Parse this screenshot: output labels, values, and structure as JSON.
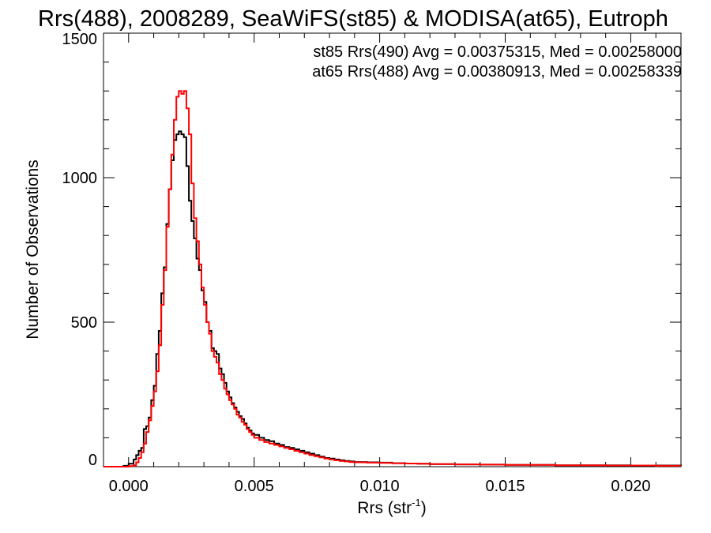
{
  "chart_data": {
    "type": "line",
    "title": "Rrs(488), 2008289, SeaWiFS(st85) & MODISA(at65), Eutroph",
    "xlabel": "Rrs (str",
    "xlabel_sup": "-1",
    "xlabel_end": ")",
    "ylabel": "Number of Observations",
    "xlim": [
      -0.001,
      0.022
    ],
    "ylim": [
      0,
      1500
    ],
    "xticks": [
      0.0,
      0.005,
      0.01,
      0.015,
      0.02
    ],
    "xtick_labels": [
      "0.000",
      "0.005",
      "0.010",
      "0.015",
      "0.020"
    ],
    "yticks": [
      0,
      500,
      1000,
      1500
    ],
    "ytick_labels": [
      "0",
      "500",
      "1000",
      "1500"
    ],
    "step": "histogram",
    "legend_position": "top-right",
    "series": [
      {
        "name": "st85 Rrs(490) Avg = 0.00375315, Med = 0.00258000",
        "color": "#000000",
        "x": [
          -0.001,
          -0.0005,
          -0.0002,
          0.0,
          0.0002,
          0.0003,
          0.0004,
          0.0005,
          0.0006,
          0.0007,
          0.0008,
          0.0009,
          0.001,
          0.0011,
          0.0012,
          0.0013,
          0.0014,
          0.0015,
          0.0016,
          0.0017,
          0.0018,
          0.0019,
          0.002,
          0.0021,
          0.0022,
          0.0023,
          0.0024,
          0.0025,
          0.0026,
          0.0027,
          0.0028,
          0.0029,
          0.003,
          0.0031,
          0.0032,
          0.0033,
          0.0034,
          0.0035,
          0.0036,
          0.0037,
          0.0038,
          0.0039,
          0.004,
          0.0041,
          0.0042,
          0.0043,
          0.0044,
          0.0045,
          0.0046,
          0.0047,
          0.0048,
          0.0049,
          0.005,
          0.0052,
          0.0054,
          0.0056,
          0.0058,
          0.006,
          0.0062,
          0.0064,
          0.0066,
          0.0068,
          0.007,
          0.0072,
          0.0074,
          0.0076,
          0.0078,
          0.008,
          0.0082,
          0.0084,
          0.0086,
          0.0088,
          0.009,
          0.0095,
          0.01,
          0.0105,
          0.011,
          0.0115,
          0.012,
          0.013,
          0.014,
          0.015,
          0.016,
          0.017,
          0.018,
          0.019,
          0.02,
          0.021,
          0.022
        ],
        "y": [
          0,
          0,
          3,
          10,
          25,
          40,
          55,
          65,
          130,
          140,
          170,
          230,
          280,
          390,
          470,
          600,
          690,
          840,
          960,
          1060,
          1130,
          1150,
          1160,
          1150,
          1140,
          1040,
          920,
          850,
          790,
          720,
          680,
          610,
          570,
          500,
          470,
          410,
          400,
          390,
          340,
          320,
          290,
          260,
          240,
          220,
          205,
          190,
          175,
          165,
          150,
          135,
          125,
          115,
          110,
          100,
          92,
          88,
          80,
          75,
          68,
          65,
          60,
          55,
          50,
          45,
          40,
          35,
          30,
          28,
          25,
          22,
          20,
          18,
          16,
          15,
          14,
          12,
          11,
          10,
          9,
          8,
          7,
          6,
          6,
          5,
          5,
          5,
          4,
          4,
          3
        ]
      },
      {
        "name": "at65 Rrs(488) Avg = 0.00380913, Med = 0.00258339",
        "color": "#ff0000",
        "x": [
          -0.001,
          -0.0005,
          -0.0002,
          0.0,
          0.0002,
          0.0003,
          0.0004,
          0.0005,
          0.0006,
          0.0007,
          0.0008,
          0.0009,
          0.001,
          0.0011,
          0.0012,
          0.0013,
          0.0014,
          0.0015,
          0.0016,
          0.0017,
          0.0018,
          0.0019,
          0.002,
          0.0021,
          0.0022,
          0.0023,
          0.0024,
          0.0025,
          0.0026,
          0.0027,
          0.0028,
          0.0029,
          0.003,
          0.0031,
          0.0032,
          0.0033,
          0.0034,
          0.0035,
          0.0036,
          0.0037,
          0.0038,
          0.0039,
          0.004,
          0.0041,
          0.0042,
          0.0043,
          0.0044,
          0.0045,
          0.0046,
          0.0047,
          0.0048,
          0.0049,
          0.005,
          0.0052,
          0.0054,
          0.0056,
          0.0058,
          0.006,
          0.0062,
          0.0064,
          0.0066,
          0.0068,
          0.007,
          0.0072,
          0.0074,
          0.0076,
          0.0078,
          0.008,
          0.0082,
          0.0084,
          0.0086,
          0.0088,
          0.009,
          0.0095,
          0.01,
          0.0105,
          0.011,
          0.0115,
          0.012,
          0.013,
          0.014,
          0.015,
          0.016,
          0.017,
          0.018,
          0.019,
          0.02,
          0.021,
          0.022
        ],
        "y": [
          0,
          0,
          0,
          2,
          5,
          15,
          30,
          50,
          80,
          120,
          160,
          210,
          260,
          330,
          420,
          560,
          680,
          830,
          960,
          1080,
          1200,
          1280,
          1300,
          1290,
          1300,
          1240,
          1150,
          980,
          860,
          780,
          700,
          620,
          560,
          500,
          460,
          400,
          380,
          360,
          320,
          300,
          270,
          250,
          230,
          215,
          200,
          180,
          170,
          155,
          145,
          130,
          120,
          110,
          100,
          92,
          85,
          80,
          75,
          70,
          65,
          60,
          55,
          50,
          45,
          40,
          36,
          32,
          28,
          25,
          22,
          20,
          18,
          16,
          15,
          14,
          13,
          12,
          11,
          10,
          9,
          8,
          7,
          6,
          6,
          5,
          5,
          4,
          4,
          3,
          3
        ]
      }
    ]
  }
}
